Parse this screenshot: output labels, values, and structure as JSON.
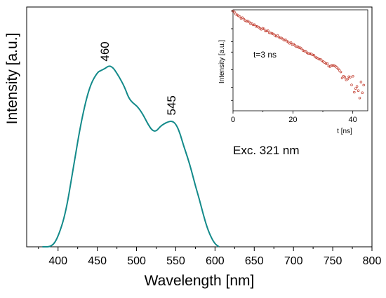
{
  "chart_data": [
    {
      "type": "line",
      "xlabel": "Wavelength [nm]",
      "ylabel": "Intensity [a.u.]",
      "xlim": [
        360,
        800
      ],
      "x_ticks": [
        400,
        450,
        500,
        550,
        600,
        650,
        700,
        750,
        800
      ],
      "y_ticks_shown": false,
      "color": "#138a8a",
      "series": [
        {
          "x": [
            380,
            392,
            400,
            410,
            420,
            430,
            440,
            450,
            455,
            460,
            465,
            470,
            475,
            480,
            485,
            490,
            495,
            500,
            505,
            510,
            515,
            520,
            525,
            530,
            535,
            540,
            545,
            550,
            555,
            560,
            565,
            570,
            575,
            580,
            585,
            590,
            595,
            600,
            605
          ],
          "y": [
            0,
            0,
            0.05,
            0.18,
            0.43,
            0.67,
            0.84,
            0.915,
            0.925,
            0.935,
            0.95,
            0.94,
            0.91,
            0.875,
            0.835,
            0.78,
            0.755,
            0.74,
            0.715,
            0.68,
            0.64,
            0.61,
            0.605,
            0.63,
            0.645,
            0.655,
            0.66,
            0.645,
            0.6,
            0.53,
            0.47,
            0.4,
            0.32,
            0.25,
            0.17,
            0.1,
            0.05,
            0.015,
            0
          ]
        }
      ],
      "annotations": [
        {
          "text": "460",
          "x": 460
        },
        {
          "text": "545",
          "x": 545
        },
        {
          "text": "Exc. 321 nm"
        }
      ]
    },
    {
      "type": "scatter",
      "inset": true,
      "xlabel": "t [ns]",
      "ylabel": "Intensity [a.u.]",
      "xlim": [
        0,
        45
      ],
      "x_ticks": [
        0,
        20,
        40
      ],
      "y_scale": "log",
      "color": "#c0392b",
      "annotation": "t=3 ns",
      "series": [
        {
          "x": [
            0,
            2,
            4,
            6,
            8,
            10,
            12,
            14,
            16,
            18,
            20,
            22,
            24,
            26,
            28,
            30,
            32,
            34,
            36,
            38,
            40,
            42,
            44
          ],
          "y": [
            1.0,
            0.82,
            0.7,
            0.62,
            0.55,
            0.49,
            0.44,
            0.39,
            0.35,
            0.31,
            0.27,
            0.24,
            0.21,
            0.185,
            0.16,
            0.14,
            0.12,
            0.105,
            0.09,
            0.075,
            0.06,
            0.045,
            0.04
          ]
        }
      ]
    }
  ]
}
